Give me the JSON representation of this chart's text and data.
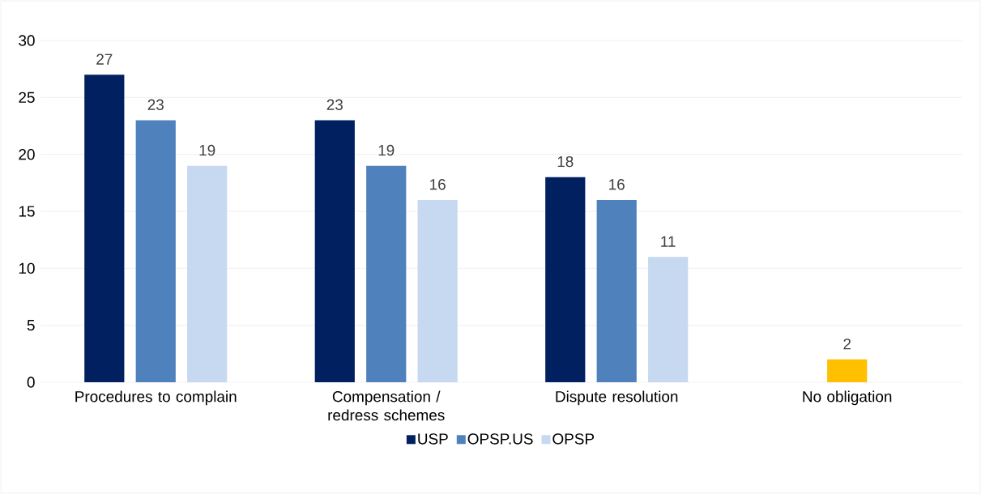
{
  "chart_data": {
    "type": "bar",
    "categories": [
      "Procedures to complain",
      "Compensation / redress schemes",
      "Dispute resolution",
      "No obligation"
    ],
    "series": [
      {
        "name": "USP",
        "color": "#002060",
        "values": [
          27,
          23,
          18,
          null
        ]
      },
      {
        "name": "OPSP.US",
        "color": "#4f81bd",
        "values": [
          23,
          19,
          16,
          2
        ],
        "colors": [
          "#4f81bd",
          "#4f81bd",
          "#4f81bd",
          "#ffc000"
        ]
      },
      {
        "name": "OPSP",
        "color": "#c6d9f0",
        "values": [
          19,
          16,
          11,
          null
        ]
      }
    ],
    "ylim": [
      0,
      30
    ],
    "yticks": [
      0,
      5,
      10,
      15,
      20,
      25,
      30
    ],
    "grid": "y",
    "legend": "bottom",
    "data_labels": true
  }
}
